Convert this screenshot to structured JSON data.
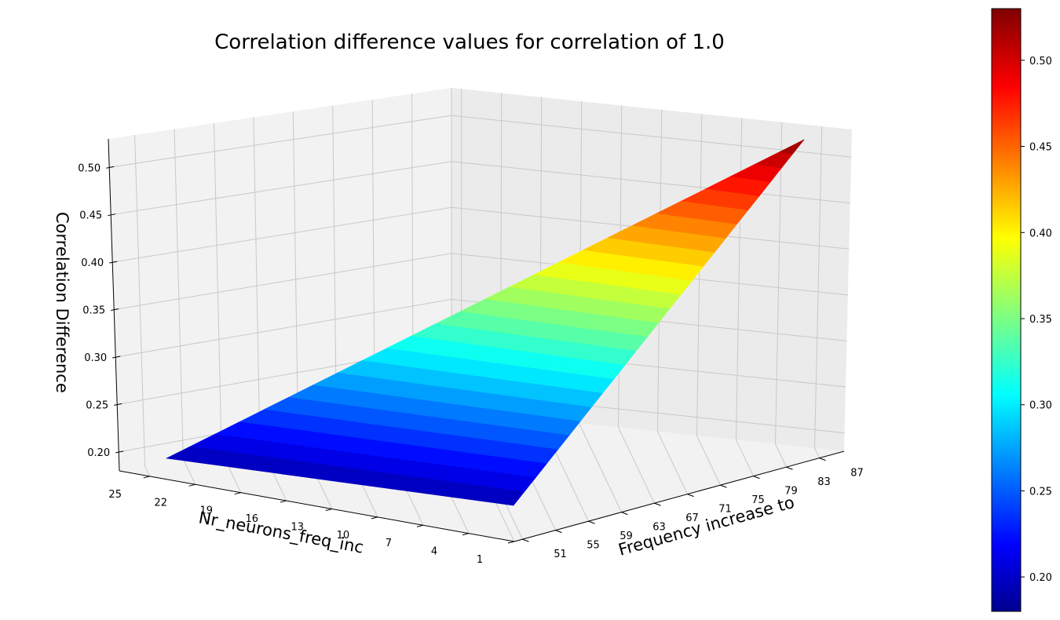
{
  "chart_data": {
    "type": "surface3d",
    "title": "Correlation difference values for correlation of 1.0",
    "xlabel": "Frequency increase to",
    "ylabel": "Nr_neurons_freq_inc",
    "zlabel": "Correlation Difference",
    "x_ticks": [
      "51",
      "55",
      "59",
      "63",
      "67",
      "71",
      "75",
      "79",
      "83",
      "87"
    ],
    "y_ticks": [
      "1",
      "4",
      "7",
      "10",
      "13",
      "16",
      "19",
      "22",
      "25"
    ],
    "z_ticks": [
      "0.20",
      "0.25",
      "0.30",
      "0.35",
      "0.40",
      "0.45",
      "0.50"
    ],
    "colorbar_ticks": [
      "0.20",
      "0.25",
      "0.30",
      "0.35",
      "0.40",
      "0.45",
      "0.50"
    ],
    "x_range": [
      50,
      90
    ],
    "y_range": [
      1,
      27
    ],
    "z_range": [
      0.18,
      0.53
    ],
    "colormap": "jet",
    "surface_samples": {
      "frequency_increase_to": [
        51,
        90,
        90,
        51
      ],
      "nr_neurons_freq_inc": [
        1,
        1,
        27,
        27
      ],
      "correlation_difference": [
        0.19,
        0.53,
        0.53,
        0.19
      ]
    },
    "grid": true
  }
}
